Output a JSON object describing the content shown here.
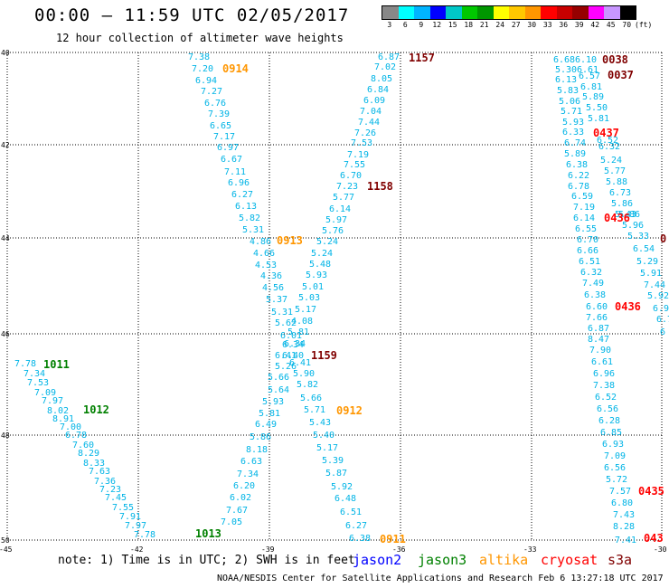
{
  "header": {
    "title": "00:00 – 11:59 UTC 02/05/2017",
    "subtitle": "12 hour collection of altimeter wave heights"
  },
  "legend": {
    "unit": "(ft)",
    "ticks": [
      "3",
      "6",
      "9",
      "12",
      "15",
      "18",
      "21",
      "24",
      "27",
      "30",
      "33",
      "36",
      "39",
      "42",
      "45",
      "70"
    ],
    "colors": [
      "#888888",
      "#00ffff",
      "#00b4ff",
      "#0000ff",
      "#00c8c8",
      "#00c800",
      "#009600",
      "#ffff00",
      "#ffc800",
      "#ff9600",
      "#ff0000",
      "#c80000",
      "#960000",
      "#ff00ff",
      "#c896ff",
      "#000000"
    ]
  },
  "map": {
    "lat_labels": [
      "40",
      "42",
      "44",
      "46",
      "48",
      "50"
    ],
    "lon_labels": [
      "-45",
      "-42",
      "-39",
      "-36",
      "-33",
      "-30"
    ],
    "colors": {
      "jason2": "#0000ff",
      "jason3": "#008000",
      "altika": "#ff9600",
      "cryosat": "#ff0000",
      "s3a": "#800000",
      "obs": "#00b4e6"
    },
    "pass_labels": [
      {
        "text": "0914",
        "sat": "altika"
      },
      {
        "text": "1157",
        "sat": "s3a"
      },
      {
        "text": "0038",
        "sat": "s3a"
      },
      {
        "text": "0037",
        "sat": "s3a"
      },
      {
        "text": "0437",
        "sat": "cryosat"
      },
      {
        "text": "1158",
        "sat": "s3a"
      },
      {
        "text": "0436",
        "sat": "cryosat"
      },
      {
        "text": "0913",
        "sat": "altika"
      },
      {
        "text": "0436",
        "sat": "cryosat"
      },
      {
        "text": "1159",
        "sat": "s3a"
      },
      {
        "text": "1011",
        "sat": "jason3"
      },
      {
        "text": "1012",
        "sat": "jason3"
      },
      {
        "text": "0912",
        "sat": "altika"
      },
      {
        "text": "1013",
        "sat": "jason3"
      },
      {
        "text": "0911",
        "sat": "altika"
      },
      {
        "text": "0435",
        "sat": "cryosat"
      },
      {
        "text": "043",
        "sat": "cryosat"
      },
      {
        "text": "0",
        "sat": "s3a"
      }
    ],
    "track_a": [
      "7.38",
      "7.20",
      "6.94",
      "7.27",
      "6.76",
      "7.39",
      "6.65",
      "7.17",
      "6.97",
      "6.67",
      "7.11",
      "6.96",
      "6.27",
      "6.13",
      "5.82",
      "5.31",
      "4.86",
      "4.66",
      "4.53",
      "4.36",
      "4.56",
      "5.37",
      "5.31",
      "5.62",
      "6.01",
      "6.34",
      "6.41",
      "5.26",
      "5.66",
      "5.64",
      "5.93",
      "5.81",
      "6.49",
      "5.86",
      "8.18",
      "6.63",
      "7.34",
      "6.20",
      "6.02",
      "7.67",
      "7.05"
    ],
    "track_b": [
      "6.87",
      "7.02",
      "8.05",
      "6.84",
      "6.09",
      "7.04",
      "7.44",
      "7.26",
      "7.53",
      "7.19",
      "7.55",
      "6.70",
      "7.23",
      "5.77",
      "6.14",
      "5.97",
      "5.76",
      "5.24",
      "5.24",
      "5.48",
      "5.93",
      "5.01",
      "5.03",
      "5.17",
      "4.08",
      "5.81",
      "6.34",
      "6.40",
      "6.41",
      "5.90",
      "5.82",
      "5.66",
      "5.71",
      "5.43",
      "5.40",
      "5.17",
      "5.39",
      "5.87",
      "5.92",
      "6.48",
      "6.51",
      "6.27",
      "6.38"
    ],
    "track_c": [
      "7.78",
      "7.34",
      "7.53",
      "7.09",
      "7.97",
      "8.02",
      "8.91",
      "7.00",
      "6.78",
      "7.60",
      "8.29",
      "8.33",
      "7.63",
      "7.36",
      "7.23",
      "7.45",
      "7.55",
      "7.91",
      "7.97",
      "7.78"
    ],
    "track_d": [
      "6.68",
      "5.30",
      "6.13",
      "5.83",
      "5.06",
      "5.71",
      "5.93",
      "6.33",
      "6.74",
      "5.89",
      "6.38",
      "6.22",
      "6.78",
      "6.59",
      "7.19",
      "6.14",
      "6.55",
      "6.70",
      "6.66",
      "6.51",
      "6.32",
      "7.49",
      "6.38",
      "6.60",
      "7.66",
      "6.87",
      "8.47",
      "7.90",
      "6.61",
      "6.96",
      "7.38",
      "6.52",
      "6.56",
      "6.28",
      "6.85",
      "6.93",
      "7.09",
      "6.56",
      "5.72",
      "7.57",
      "6.80",
      "7.43",
      "8.28",
      "7.41"
    ],
    "track_e": [
      "6.10",
      "6.61",
      "6.57",
      "6.81",
      "5.89",
      "5.50",
      "5.81",
      "6.52",
      "6.32",
      "5.24",
      "5.77",
      "5.88",
      "6.73",
      "5.86",
      "5.43",
      "5.86",
      "5.96",
      "5.33",
      "6.54",
      "5.29",
      "5.91",
      "7.44",
      "5.92",
      "6.9",
      "6.7",
      "6"
    ]
  },
  "notes": {
    "note_text": "note: 1) Time is in UTC; 2) SWH is in feet",
    "sat_names": {
      "jason2": "jason2",
      "jason3": "jason3",
      "altika": "altika",
      "cryosat": "cryosat",
      "s3a": "s3a"
    },
    "credit": "NOAA/NESDIS Center for Satellite Applications and Research   Feb  6 13:27:18 UTC 2017"
  }
}
